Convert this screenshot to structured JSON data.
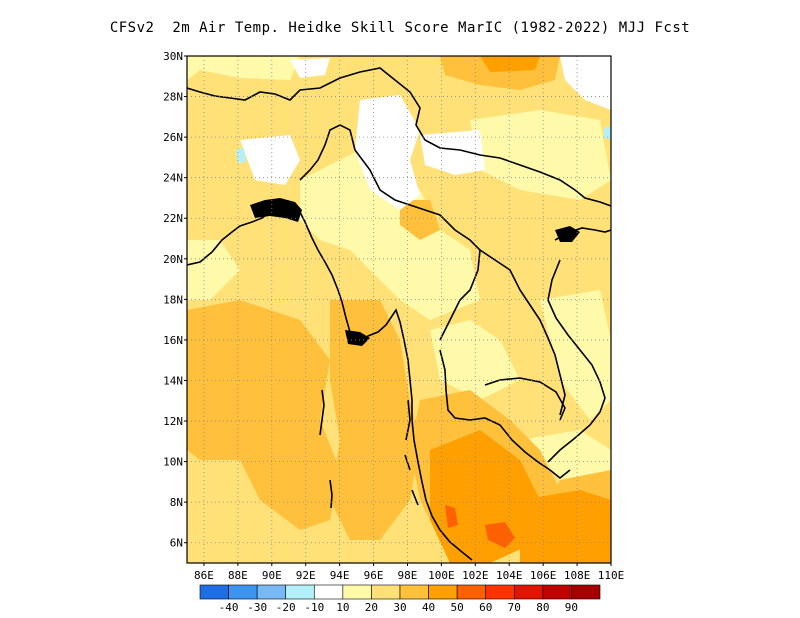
{
  "title": "CFSv2  2m Air Temp. Heidke Skill Score MarIC (1982-2022) MJJ Fcst",
  "lat_labels": [
    "30N",
    "28N",
    "26N",
    "24N",
    "22N",
    "20N",
    "18N",
    "16N",
    "14N",
    "12N",
    "10N",
    "8N",
    "6N"
  ],
  "lon_labels": [
    "86E",
    "88E",
    "90E",
    "92E",
    "94E",
    "96E",
    "98E",
    "100E",
    "102E",
    "104E",
    "106E",
    "108E",
    "110E"
  ],
  "colorbar": {
    "labels": [
      "-40",
      "-30",
      "-20",
      "-10",
      "10",
      "20",
      "30",
      "40",
      "50",
      "60",
      "70",
      "80",
      "90"
    ],
    "colors": [
      "#1e6ee6",
      "#3c96f0",
      "#78b9f5",
      "#b4f0fa",
      "#ffffff",
      "#fffaaa",
      "#ffe178",
      "#ffc03c",
      "#ffa000",
      "#ff6000",
      "#ff3200",
      "#e11400",
      "#c00000",
      "#a50000"
    ]
  },
  "fill_colors": {
    "level10_20": "#fffaaa",
    "level20_30": "#ffe178",
    "level30_40": "#ffc03c",
    "level40_50": "#ffa000",
    "level50_60": "#ff6000",
    "white": "#ffffff",
    "light_blue": "#b4f0fa",
    "coast": "#000000"
  }
}
